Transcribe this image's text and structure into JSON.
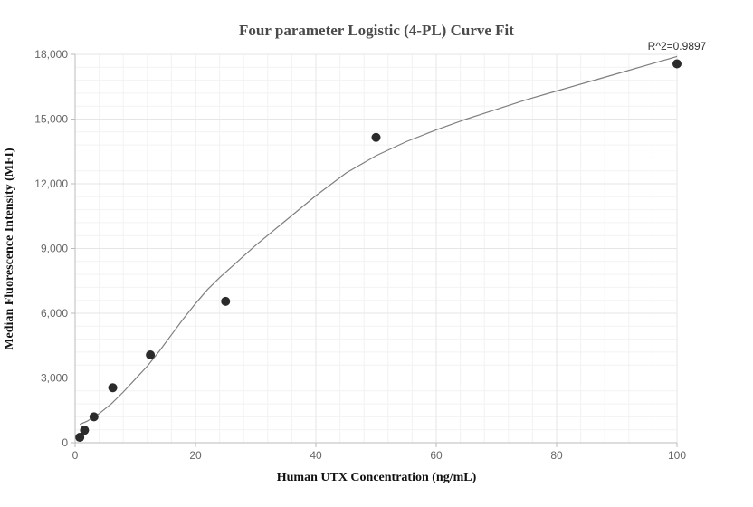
{
  "chart_data": {
    "type": "scatter",
    "title": "Four parameter Logistic (4-PL) Curve Fit",
    "xlabel": "Human UTX Concentration (ng/mL)",
    "ylabel": "Median Fluorescence Intensity (MFI)",
    "xlim": [
      0,
      100
    ],
    "ylim": [
      0,
      18000
    ],
    "x_ticks": [
      "0",
      "20",
      "40",
      "60",
      "80",
      "100"
    ],
    "y_ticks": [
      "0",
      "3,000",
      "6,000",
      "9,000",
      "12,000",
      "15,000",
      "18,000"
    ],
    "grid": true,
    "annotation": "R^2=0.9897",
    "points": {
      "x": [
        0.78,
        1.56,
        3.13,
        6.25,
        12.5,
        25,
        50,
        100
      ],
      "y": [
        250,
        580,
        1200,
        2550,
        4070,
        6550,
        14150,
        17560
      ]
    },
    "fit_curve": {
      "x": [
        0.78,
        2,
        4,
        6,
        8,
        10,
        12,
        14,
        16,
        18,
        20,
        22,
        24,
        26,
        28,
        30,
        35,
        40,
        45,
        50,
        55,
        60,
        65,
        70,
        75,
        80,
        85,
        90,
        95,
        100
      ],
      "y": [
        850,
        1000,
        1350,
        1800,
        2350,
        2950,
        3550,
        4250,
        5000,
        5750,
        6450,
        7100,
        7650,
        8150,
        8650,
        9150,
        10300,
        11450,
        12500,
        13300,
        13950,
        14500,
        15000,
        15450,
        15900,
        16300,
        16700,
        17100,
        17500,
        17900
      ]
    },
    "colors": {
      "point": "#2b2b2b",
      "curve": "#7f7f7f",
      "grid": "#e6e6e6",
      "minor_grid": "#f2f2f2",
      "axis": "#bbbbbb"
    }
  }
}
